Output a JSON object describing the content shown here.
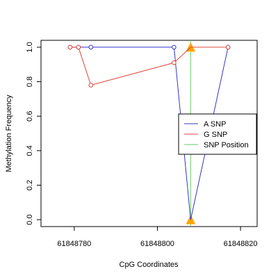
{
  "chart_data": {
    "type": "line",
    "xlabel": "CpG Coordinates",
    "ylabel": "Methylation Frequency",
    "xlim": [
      61848772,
      61848824
    ],
    "ylim": [
      -0.04,
      1.04
    ],
    "x_ticks": [
      61848780,
      61848800,
      61848820
    ],
    "x_tick_labels": [
      "61848780",
      "61848800",
      "61848820"
    ],
    "y_ticks": [
      0.0,
      0.2,
      0.4,
      0.6,
      0.8,
      1.0
    ],
    "y_tick_labels": [
      "0.0",
      "0.2",
      "0.4",
      "0.6",
      "0.8",
      "1.0"
    ],
    "series": [
      {
        "name": "A SNP",
        "color": "#3333cc",
        "x": [
          61848779,
          61848781,
          61848784,
          61848804,
          61848808,
          61848817
        ],
        "y": [
          1.0,
          1.0,
          1.0,
          1.0,
          0.0,
          1.0
        ]
      },
      {
        "name": "G SNP",
        "color": "#e0473c",
        "x": [
          61848779,
          61848781,
          61848784,
          61848804,
          61848808,
          61848817
        ],
        "y": [
          1.0,
          1.0,
          0.78,
          0.91,
          1.0,
          1.0
        ]
      }
    ],
    "snp_position": {
      "name": "SNP Position",
      "color": "#66cc66",
      "x": 61848808,
      "marker_color": "#ffa500",
      "marker_y": [
        0.0,
        1.0
      ]
    },
    "legend": {
      "placement": "right",
      "entries": [
        {
          "label": "A SNP",
          "color": "#3333cc"
        },
        {
          "label": "G SNP",
          "color": "#e0473c"
        },
        {
          "label": "SNP Position",
          "color": "#66cc66"
        }
      ]
    },
    "grid": false
  }
}
